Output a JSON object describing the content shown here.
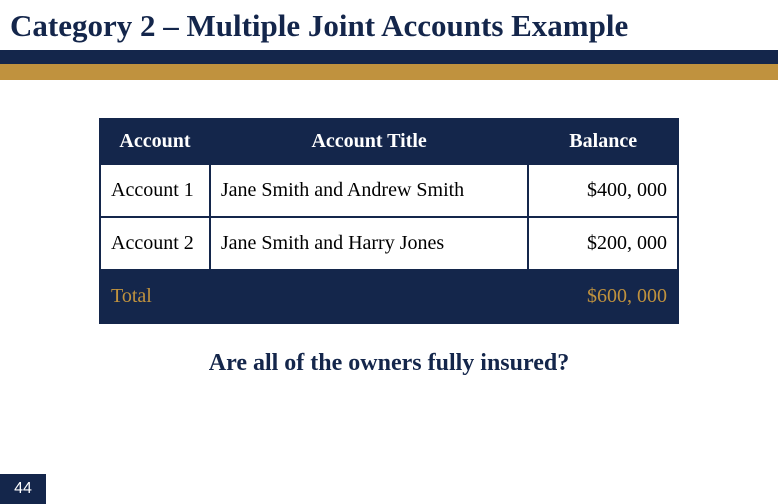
{
  "colors": {
    "slide_title": "#14264b",
    "bar_dark": "#14264b",
    "bar_gold": "#c0923e",
    "header_bg": "#14264b",
    "header_fg": "#ffffff",
    "row_bg": "#ffffff",
    "row_fg": "#000000",
    "total_bg": "#14264b",
    "total_fg": "#c0923e",
    "border": "#14264b",
    "question": "#14264b",
    "pagenum_bg": "#14264b",
    "pagenum_fg": "#ffffff"
  },
  "slide_title": "Category 2 – Multiple Joint Accounts Example",
  "table": {
    "columns": [
      "Account",
      "Account Title",
      "Balance"
    ],
    "rows": [
      {
        "account": "Account 1",
        "title": "Jane Smith and Andrew Smith",
        "balance": "$400, 000"
      },
      {
        "account": "Account 2",
        "title": "Jane Smith and Harry Jones",
        "balance": "$200, 000"
      }
    ],
    "total_label": "Total",
    "total_balance": "$600, 000"
  },
  "question": "Are all of the owners fully insured?",
  "page_number": "44"
}
